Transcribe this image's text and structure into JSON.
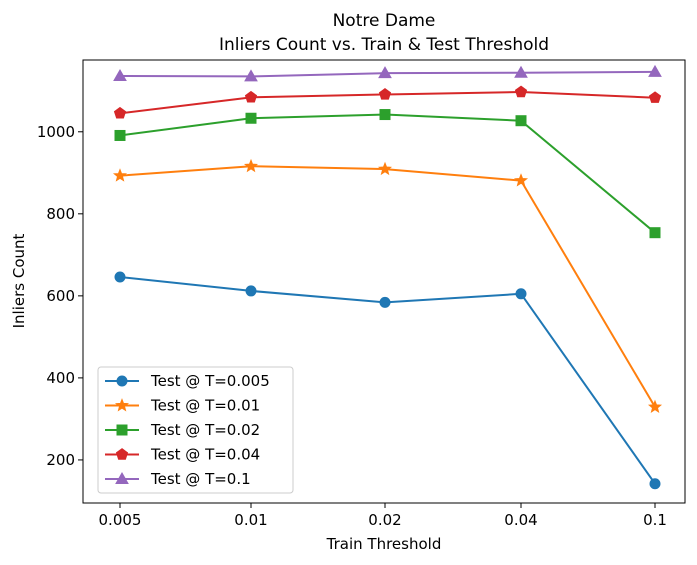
{
  "chart_data": {
    "type": "line",
    "title": [
      "Notre Dame",
      "Inliers Count vs. Train & Test Threshold"
    ],
    "xlabel": "Train Threshold",
    "ylabel": "Inliers Count",
    "categories": [
      "0.005",
      "0.01",
      "0.02",
      "0.04",
      "0.1"
    ],
    "yticks": [
      "200",
      "400",
      "600",
      "800",
      "1000"
    ],
    "ylim": [
      95,
      1175
    ],
    "grid": false,
    "legend_position": "lower-left",
    "series": [
      {
        "name": "Test @ T=0.005",
        "color": "#1f77b4",
        "marker": "circle",
        "values": [
          646,
          612,
          584,
          605,
          142
        ]
      },
      {
        "name": "Test @ T=0.01",
        "color": "#ff7f0e",
        "marker": "star",
        "values": [
          893,
          916,
          909,
          881,
          329
        ]
      },
      {
        "name": "Test @ T=0.02",
        "color": "#2ca02c",
        "marker": "square",
        "values": [
          991,
          1033,
          1042,
          1027,
          754
        ]
      },
      {
        "name": "Test @ T=0.04",
        "color": "#d62728",
        "marker": "pentagon",
        "values": [
          1045,
          1084,
          1091,
          1097,
          1083
        ]
      },
      {
        "name": "Test @ T=0.1",
        "color": "#9467bd",
        "marker": "triangle",
        "values": [
          1136,
          1135,
          1143,
          1144,
          1146
        ]
      }
    ]
  }
}
